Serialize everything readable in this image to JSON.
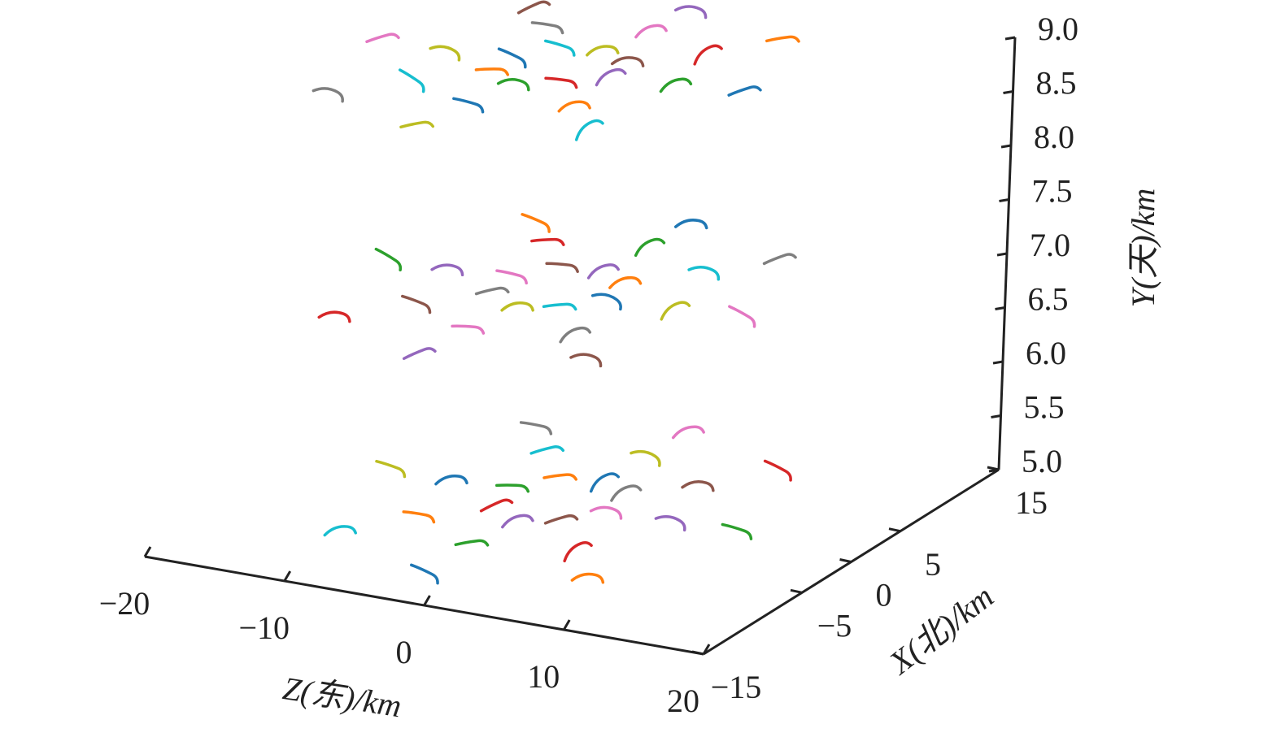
{
  "chart_data": {
    "type": "trajectory3d",
    "zlabel": "Z(东)/km",
    "xlabel": "X(北)/km",
    "ylabel": "Y(天)/km",
    "zlim": [
      -20,
      20
    ],
    "zticks": [
      {
        "value": -20,
        "label": "−20"
      },
      {
        "value": -10,
        "label": "−10"
      },
      0,
      10,
      20
    ],
    "xlim": [
      -15,
      15
    ],
    "xticks": [
      {
        "value": -15,
        "label": "−15"
      },
      {
        "value": -5,
        "label": "−5"
      },
      0,
      5,
      15
    ],
    "ylim": [
      5,
      9
    ],
    "yticks": [
      {
        "value": 5,
        "label": "5.0"
      },
      {
        "value": 5.5,
        "label": "5.5"
      },
      {
        "value": 6,
        "label": "6.0"
      },
      {
        "value": 6.5,
        "label": "6.5"
      },
      {
        "value": 7,
        "label": "7.0"
      },
      {
        "value": 7.5,
        "label": "7.5"
      },
      {
        "value": 8,
        "label": "8.0"
      },
      {
        "value": 8.5,
        "label": "8.5"
      },
      {
        "value": 9,
        "label": "9.0"
      }
    ],
    "points": {
      "z": [
        -11.3,
        -2.5,
        -8.9,
        -3.0,
        -17.0,
        -12.6,
        -6.4,
        -3.9,
        5.5,
        2.2,
        -8.2,
        -1.5,
        -8.0,
        -1.2,
        -11.8,
        -5.9,
        -3.2,
        3.2,
        8.0,
        -15.4,
        -6.4,
        -0.5,
        -7.3,
        2.3,
        -11.0,
        -2.3,
        -8.5,
        -2.7,
        -16.0,
        -11.9,
        -5.5,
        -3.1,
        6.1,
        2.7,
        -7.5,
        -0.8,
        -7.1,
        -0.2,
        -10.4,
        -4.6,
        -2.0,
        4.4,
        8.9,
        -14.0,
        -5.2,
        1.0,
        -5.6,
        3.9,
        -9.6,
        -0.9,
        -6.8,
        -1.0,
        -14.1,
        -9.8,
        -3.7,
        -1.2,
        7.7,
        4.5,
        -5.5,
        1.0,
        -4.7,
        1.7,
        -8.2,
        -2.5,
        0.2,
        6.2,
        10.9,
        -11.5,
        -2.7,
        3.5,
        -2.8,
        6.6
      ],
      "x": [
        10.6,
        14.1,
        8.5,
        10.6,
        3.3,
        3.5,
        6.2,
        7.0,
        12.0,
        8.9,
        3.9,
        6.2,
        1.6,
        3.9,
        -1.2,
        0.9,
        1.8,
        4.3,
        4.6,
        -4.4,
        -3.1,
        -0.7,
        -7.0,
        -3.3,
        11.1,
        14.6,
        8.8,
        10.8,
        3.2,
        3.5,
        6.0,
        6.7,
        11.7,
        8.9,
        3.7,
        5.7,
        1.2,
        3.2,
        -1.9,
        0.2,
        0.8,
        3.3,
        3.8,
        -5.0,
        -4.0,
        -2.0,
        -8.3,
        -4.8,
        9.9,
        13.0,
        7.1,
        9.0,
        1.5,
        1.6,
        4.0,
        4.8,
        9.9,
        6.4,
        1.7,
        3.9,
        -1.0,
        1.1,
        -4.0,
        -2.1,
        -1.4,
        1.3,
        1.2,
        -7.3,
        -6.4,
        -4.6,
        -11.1,
        -7.8
      ],
      "y": [
        8.8,
        8.8,
        8.8,
        8.8,
        8.8,
        8.8,
        8.8,
        8.8,
        8.8,
        8.8,
        8.8,
        8.8,
        8.8,
        8.8,
        8.8,
        8.8,
        8.8,
        8.8,
        8.8,
        8.8,
        8.8,
        8.8,
        8.8,
        8.8,
        6.8,
        6.8,
        6.8,
        6.8,
        6.8,
        6.8,
        6.8,
        6.8,
        6.8,
        6.8,
        6.8,
        6.8,
        6.8,
        6.8,
        6.8,
        6.8,
        6.8,
        6.8,
        6.8,
        6.8,
        6.8,
        6.8,
        6.8,
        6.8,
        5,
        5,
        5,
        5,
        5,
        5,
        5,
        5,
        5,
        5,
        5,
        5,
        5,
        5,
        5,
        5,
        5,
        5,
        5,
        5,
        5,
        5,
        5,
        5
      ],
      "colors": [
        "#8c564b",
        "#9467bd",
        "#7f7f7f",
        "#e377c2",
        "#e377c2",
        "#bcbd22",
        "#17becf",
        "#bcbd22",
        "#ff7f0e",
        "#d62728",
        "#1f77b4",
        "#8c564b",
        "#ff7f0e",
        "#9467bd",
        "#17becf",
        "#2ca02c",
        "#d62728",
        "#2ca02c",
        "#1f77b4",
        "#7f7f7f",
        "#1f77b4",
        "#ff7f0e",
        "#bcbd22",
        "#17becf",
        "#ff7f0e",
        "#1f77b4",
        "#d62728",
        "#2ca02c",
        "#2ca02c",
        "#9467bd",
        "#8c564b",
        "#9467bd",
        "#7f7f7f",
        "#17becf",
        "#e377c2",
        "#ff7f0e",
        "#7f7f7f",
        "#1f77b4",
        "#8c564b",
        "#bcbd22",
        "#17becf",
        "#bcbd22",
        "#e377c2",
        "#d62728",
        "#e377c2",
        "#7f7f7f",
        "#9467bd",
        "#8c564b",
        "#7f7f7f",
        "#e377c2",
        "#17becf",
        "#bcbd22",
        "#bcbd22",
        "#1f77b4",
        "#ff7f0e",
        "#1f77b4",
        "#d62728",
        "#8c564b",
        "#2ca02c",
        "#7f7f7f",
        "#d62728",
        "#e377c2",
        "#ff7f0e",
        "#9467bd",
        "#8c564b",
        "#9467bd",
        "#2ca02c",
        "#17becf",
        "#2ca02c",
        "#d62728",
        "#1f77b4",
        "#ff7f0e"
      ]
    }
  }
}
